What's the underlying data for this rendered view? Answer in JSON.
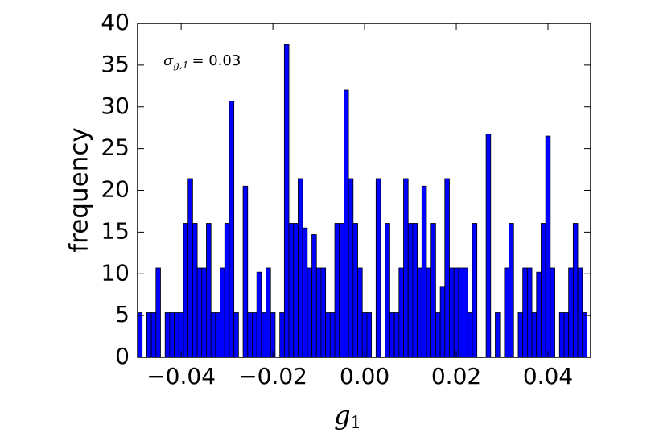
{
  "chart_data": {
    "type": "histogram",
    "ylabel": "frequency",
    "xlabel": {
      "symbol": "g",
      "subscript": "1"
    },
    "annotation": {
      "symbol": "σ",
      "subscript": "g,1",
      "text": "= 0.03"
    },
    "color": "#0000ff",
    "bins": [
      -0.0495,
      -0.0485,
      -0.0475,
      -0.0465,
      -0.0455,
      -0.0445,
      -0.0435,
      -0.0425,
      -0.0415,
      -0.0405,
      -0.0395,
      -0.0385,
      -0.0375,
      -0.0365,
      -0.0355,
      -0.0345,
      -0.0335,
      -0.0325,
      -0.0315,
      -0.0305,
      -0.0295,
      -0.0285,
      -0.0275,
      -0.0265,
      -0.0255,
      -0.0245,
      -0.0235,
      -0.0225,
      -0.0215,
      -0.0205,
      -0.0195,
      -0.0185,
      -0.0175,
      -0.0165,
      -0.0155,
      -0.0145,
      -0.0135,
      -0.0125,
      -0.0115,
      -0.0105,
      -0.0095,
      -0.0085,
      -0.0075,
      -0.0065,
      -0.0055,
      -0.0045,
      -0.0035,
      -0.0025,
      -0.0015,
      -0.0005,
      0.0005,
      0.0015,
      0.0025,
      0.0035,
      0.0045,
      0.0055,
      0.0065,
      0.0075,
      0.0085,
      0.0095,
      0.0105,
      0.0115,
      0.0125,
      0.0135,
      0.0145,
      0.0155,
      0.0165,
      0.0175,
      0.0185,
      0.0195,
      0.0205,
      0.0215,
      0.0225,
      0.0235,
      0.0245,
      0.0255,
      0.0265,
      0.0275,
      0.0285,
      0.0295,
      0.0305,
      0.0315,
      0.0325,
      0.0335,
      0.0345,
      0.0355,
      0.0365,
      0.0375,
      0.0385,
      0.0395,
      0.0405,
      0.0415,
      0.0425,
      0.0435,
      0.0445,
      0.0455,
      0.0465,
      0.0475,
      0.0485
    ],
    "values": [
      5.35,
      0,
      5.35,
      5.35,
      10.7,
      0,
      5.35,
      5.35,
      5.35,
      5.35,
      16.05,
      21.4,
      16.05,
      10.7,
      10.7,
      16.05,
      5.35,
      5.35,
      10.7,
      16.05,
      30.7,
      5.35,
      0,
      20.5,
      5.35,
      5.35,
      10.2,
      5.35,
      10.7,
      5.35,
      0,
      5.35,
      37.45,
      16.05,
      16.05,
      21.4,
      15.5,
      10.7,
      14.7,
      10.7,
      10.7,
      5.35,
      5.35,
      16.05,
      16.05,
      32,
      21.4,
      16.05,
      10.7,
      5.35,
      5.35,
      0,
      21.4,
      0,
      16.05,
      5.35,
      5.35,
      10.7,
      21.4,
      16.05,
      16.05,
      10.7,
      20.5,
      10.7,
      16.05,
      5.35,
      8.5,
      21.4,
      10.7,
      10.7,
      10.7,
      10.7,
      5.35,
      16.05,
      0,
      0,
      26.75,
      0,
      5.35,
      0,
      10.7,
      16.05,
      0,
      5.35,
      10.7,
      10.7,
      5.35,
      10.2,
      16.05,
      26.5,
      10.7,
      0,
      5.35,
      5.35,
      10.7,
      16.05,
      10.7,
      5.35
    ],
    "xlim": [
      -0.0495,
      0.0493
    ],
    "xticks": [
      {
        "value": -0.04,
        "label": "−0.04"
      },
      {
        "value": -0.02,
        "label": "−0.02"
      },
      {
        "value": 0,
        "label": "0.00"
      },
      {
        "value": 0.02,
        "label": "0.02"
      },
      {
        "value": 0.04,
        "label": "0.04"
      }
    ],
    "ylim": [
      0,
      40
    ],
    "yticks": [
      0,
      5,
      10,
      15,
      20,
      25,
      30,
      35,
      40
    ]
  }
}
